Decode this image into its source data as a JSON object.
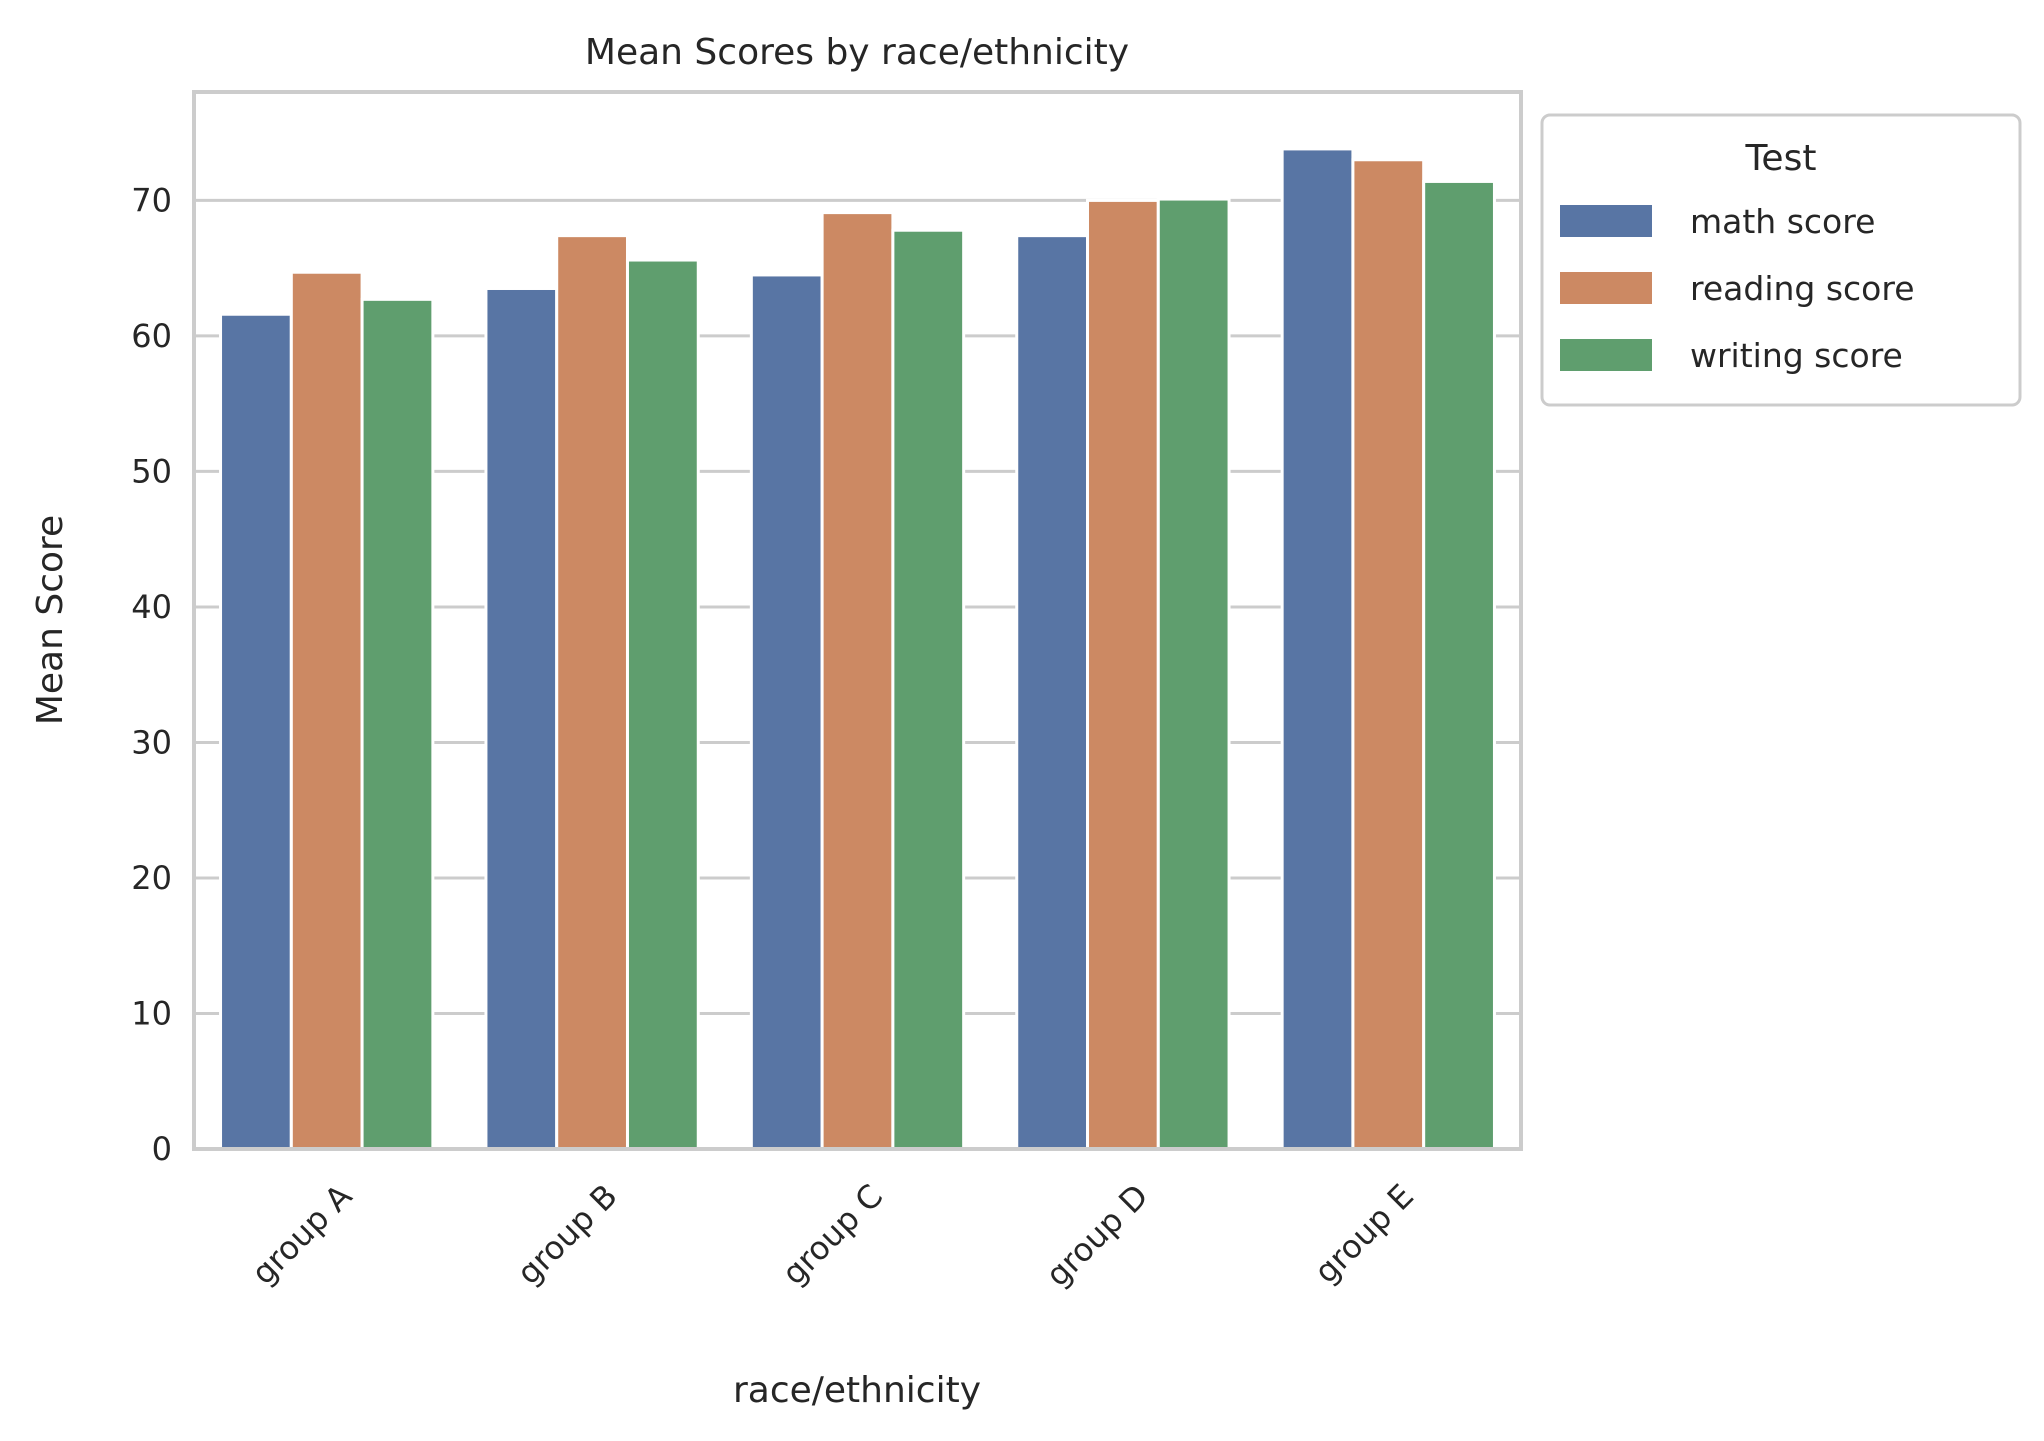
{
  "chart_data": {
    "type": "bar",
    "title": "Mean Scores by race/ethnicity",
    "xlabel": "race/ethnicity",
    "ylabel": "Mean Score",
    "categories": [
      "group A",
      "group B",
      "group C",
      "group D",
      "group E"
    ],
    "series": [
      {
        "name": "math score",
        "color": "#5875a4",
        "values": [
          61.6,
          63.5,
          64.5,
          67.4,
          73.8
        ]
      },
      {
        "name": "reading score",
        "color": "#cc8963",
        "values": [
          64.7,
          67.4,
          69.1,
          70.0,
          73.0
        ]
      },
      {
        "name": "writing score",
        "color": "#5f9e6e",
        "values": [
          62.7,
          65.6,
          67.8,
          70.1,
          71.4
        ]
      }
    ],
    "ylim": [
      0,
      78
    ],
    "yticks": [
      0,
      10,
      20,
      30,
      40,
      50,
      60,
      70
    ],
    "grid": "horizontal",
    "legend": {
      "title": "Test",
      "placement": "outside-right-top"
    }
  }
}
